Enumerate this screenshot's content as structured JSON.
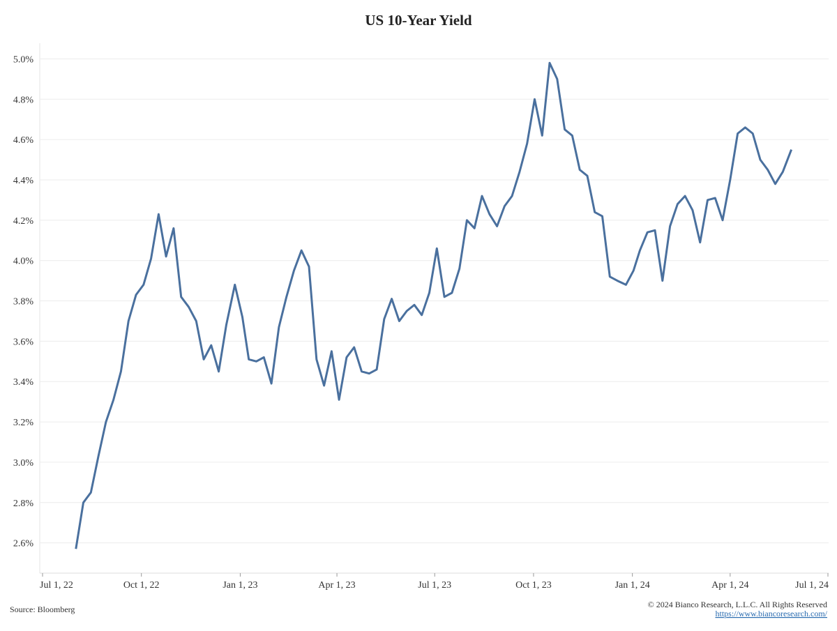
{
  "chart_data": {
    "type": "line",
    "title": "US 10-Year Yield",
    "source": "Source: Bloomberg",
    "copyright": "© 2024 Bianco Research, L.L.C. All Rights Reserved",
    "url": "https://www.biancoresearch.com/",
    "color": "#4a709e",
    "grid": true,
    "xlim": [
      "2022-07-01",
      "2024-07-01"
    ],
    "xticks": [
      {
        "value": "2022-07-01",
        "label": "Jul 1, 22"
      },
      {
        "value": "2022-10-01",
        "label": "Oct 1, 22"
      },
      {
        "value": "2023-01-01",
        "label": "Jan 1, 23"
      },
      {
        "value": "2023-04-01",
        "label": "Apr 1, 23"
      },
      {
        "value": "2023-07-01",
        "label": "Jul 1, 23"
      },
      {
        "value": "2023-10-01",
        "label": "Oct 1, 23"
      },
      {
        "value": "2024-01-01",
        "label": "Jan 1, 24"
      },
      {
        "value": "2024-04-01",
        "label": "Apr 1, 24"
      },
      {
        "value": "2024-07-01",
        "label": "Jul 1, 24"
      }
    ],
    "ylim": [
      2.45,
      5.05
    ],
    "yticks": [
      {
        "value": 2.6,
        "label": "2.6%"
      },
      {
        "value": 2.8,
        "label": "2.8%"
      },
      {
        "value": 3.0,
        "label": "3.0%"
      },
      {
        "value": 3.2,
        "label": "3.2%"
      },
      {
        "value": 3.4,
        "label": "3.4%"
      },
      {
        "value": 3.6,
        "label": "3.6%"
      },
      {
        "value": 3.8,
        "label": "3.8%"
      },
      {
        "value": 4.0,
        "label": "4.0%"
      },
      {
        "value": 4.2,
        "label": "4.2%"
      },
      {
        "value": 4.4,
        "label": "4.4%"
      },
      {
        "value": 4.6,
        "label": "4.6%"
      },
      {
        "value": 4.8,
        "label": "4.8%"
      },
      {
        "value": 5.0,
        "label": "5.0%"
      }
    ],
    "x": [
      "2022-08-01",
      "2022-08-08",
      "2022-08-15",
      "2022-08-22",
      "2022-08-29",
      "2022-09-05",
      "2022-09-12",
      "2022-09-19",
      "2022-09-26",
      "2022-10-03",
      "2022-10-10",
      "2022-10-17",
      "2022-10-24",
      "2022-10-31",
      "2022-11-07",
      "2022-11-14",
      "2022-11-21",
      "2022-11-28",
      "2022-12-05",
      "2022-12-12",
      "2022-12-19",
      "2022-12-27",
      "2023-01-03",
      "2023-01-09",
      "2023-01-16",
      "2023-01-23",
      "2023-01-30",
      "2023-02-06",
      "2023-02-13",
      "2023-02-20",
      "2023-02-27",
      "2023-03-06",
      "2023-03-13",
      "2023-03-20",
      "2023-03-27",
      "2023-04-03",
      "2023-04-10",
      "2023-04-17",
      "2023-04-24",
      "2023-05-01",
      "2023-05-08",
      "2023-05-15",
      "2023-05-22",
      "2023-05-29",
      "2023-06-05",
      "2023-06-12",
      "2023-06-19",
      "2023-06-26",
      "2023-07-03",
      "2023-07-10",
      "2023-07-17",
      "2023-07-24",
      "2023-07-31",
      "2023-08-07",
      "2023-08-14",
      "2023-08-21",
      "2023-08-28",
      "2023-09-04",
      "2023-09-11",
      "2023-09-18",
      "2023-09-25",
      "2023-10-02",
      "2023-10-09",
      "2023-10-16",
      "2023-10-23",
      "2023-10-30",
      "2023-11-06",
      "2023-11-13",
      "2023-11-20",
      "2023-11-27",
      "2023-12-04",
      "2023-12-11",
      "2023-12-18",
      "2023-12-26",
      "2024-01-02",
      "2024-01-08",
      "2024-01-15",
      "2024-01-22",
      "2024-01-29",
      "2024-02-05",
      "2024-02-12",
      "2024-02-19",
      "2024-02-26",
      "2024-03-04",
      "2024-03-11",
      "2024-03-18",
      "2024-03-25",
      "2024-04-01",
      "2024-04-08",
      "2024-04-15",
      "2024-04-22",
      "2024-04-29",
      "2024-05-06",
      "2024-05-13",
      "2024-05-20",
      "2024-05-28"
    ],
    "values": [
      2.57,
      2.8,
      2.85,
      3.03,
      3.2,
      3.31,
      3.45,
      3.7,
      3.83,
      3.88,
      4.01,
      4.23,
      4.02,
      4.16,
      3.82,
      3.77,
      3.7,
      3.51,
      3.58,
      3.45,
      3.68,
      3.88,
      3.72,
      3.51,
      3.5,
      3.52,
      3.39,
      3.67,
      3.82,
      3.95,
      4.05,
      3.97,
      3.51,
      3.38,
      3.55,
      3.31,
      3.52,
      3.57,
      3.45,
      3.44,
      3.46,
      3.71,
      3.81,
      3.7,
      3.75,
      3.78,
      3.73,
      3.84,
      4.06,
      3.82,
      3.84,
      3.96,
      4.2,
      4.16,
      4.32,
      4.23,
      4.17,
      4.27,
      4.32,
      4.44,
      4.58,
      4.8,
      4.62,
      4.98,
      4.9,
      4.65,
      4.62,
      4.45,
      4.42,
      4.24,
      4.22,
      3.92,
      3.9,
      3.88,
      3.95,
      4.05,
      4.14,
      4.15,
      3.9,
      4.17,
      4.28,
      4.32,
      4.25,
      4.09,
      4.3,
      4.31,
      4.2,
      4.4,
      4.63,
      4.66,
      4.63,
      4.5,
      4.45,
      4.38,
      4.44,
      4.55
    ]
  }
}
